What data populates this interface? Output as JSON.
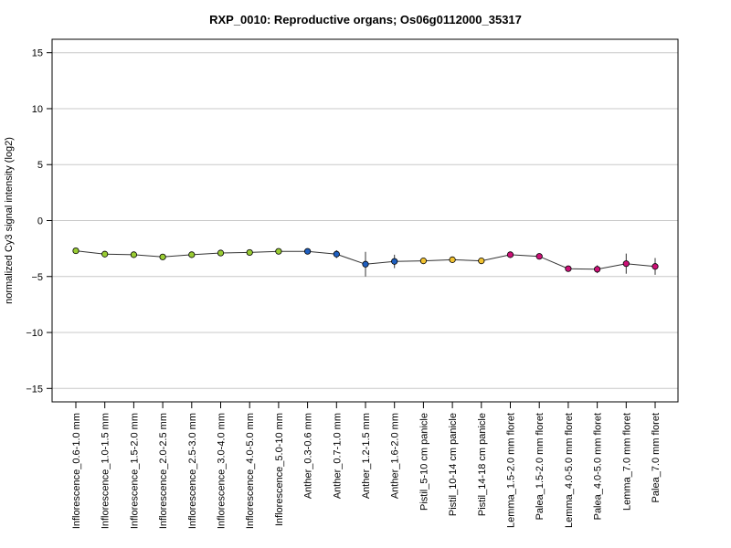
{
  "chart_data": {
    "type": "line",
    "title": "RXP_0010: Reproductive organs; Os06g0112000_35317",
    "xlabel": "",
    "ylabel": "normalized Cy3 signal intensity (log2)",
    "ylim": [
      -16.2,
      16.2
    ],
    "yticks": [
      -15,
      -10,
      -5,
      0,
      5,
      10,
      15
    ],
    "grid": true,
    "categories": [
      "Inflorescence_0.6-1.0 mm",
      "Inflorescence_1.0-1.5 mm",
      "Inflorescence_1.5-2.0 mm",
      "Inflorescence_2.0-2.5 mm",
      "Inflorescence_2.5-3.0 mm",
      "Inflorescence_3.0-4.0 mm",
      "Inflorescence_4.0-5.0 mm",
      "Inflorescence_5.0-10 mm",
      "Anther_0.3-0.6 mm",
      "Anther_0.7-1.0 mm",
      "Anther_1.2-1.5 mm",
      "Anther_1.6-2.0 mm",
      "Pistil_5-10 cm panicle",
      "Pistil_10-14 cm panicle",
      "Pistil_14-18 cm panicle",
      "Lemma_1.5-2.0 mm floret",
      "Palea_1.5-2.0 mm floret",
      "Lemma_4.0-5.0 mm floret",
      "Palea_4.0-5.0 mm floret",
      "Lemma_7.0 mm floret",
      "Palea_7.0 mm floret"
    ],
    "values": [
      -2.7,
      -3.0,
      -3.05,
      -3.25,
      -3.05,
      -2.9,
      -2.85,
      -2.75,
      -2.75,
      -3.0,
      -3.9,
      -3.65,
      -3.6,
      -3.5,
      -3.6,
      -3.05,
      -3.2,
      -4.3,
      -4.35,
      -3.85,
      -4.1
    ],
    "errors": [
      0.1,
      0.15,
      0.1,
      0.1,
      0.15,
      0.15,
      0.1,
      0.1,
      0.1,
      0.35,
      1.1,
      0.6,
      0.15,
      0.15,
      0.15,
      0.1,
      0.1,
      0.1,
      0.35,
      0.9,
      0.75
    ],
    "colors": [
      "#99cc33",
      "#99cc33",
      "#99cc33",
      "#99cc33",
      "#99cc33",
      "#99cc33",
      "#99cc33",
      "#99cc33",
      "#1f5fbf",
      "#1f5fbf",
      "#1f5fbf",
      "#1f5fbf",
      "#f2c230",
      "#f2c230",
      "#f2c230",
      "#cc1177",
      "#cc1177",
      "#cc1177",
      "#cc1177",
      "#cc1177",
      "#cc1177"
    ]
  }
}
